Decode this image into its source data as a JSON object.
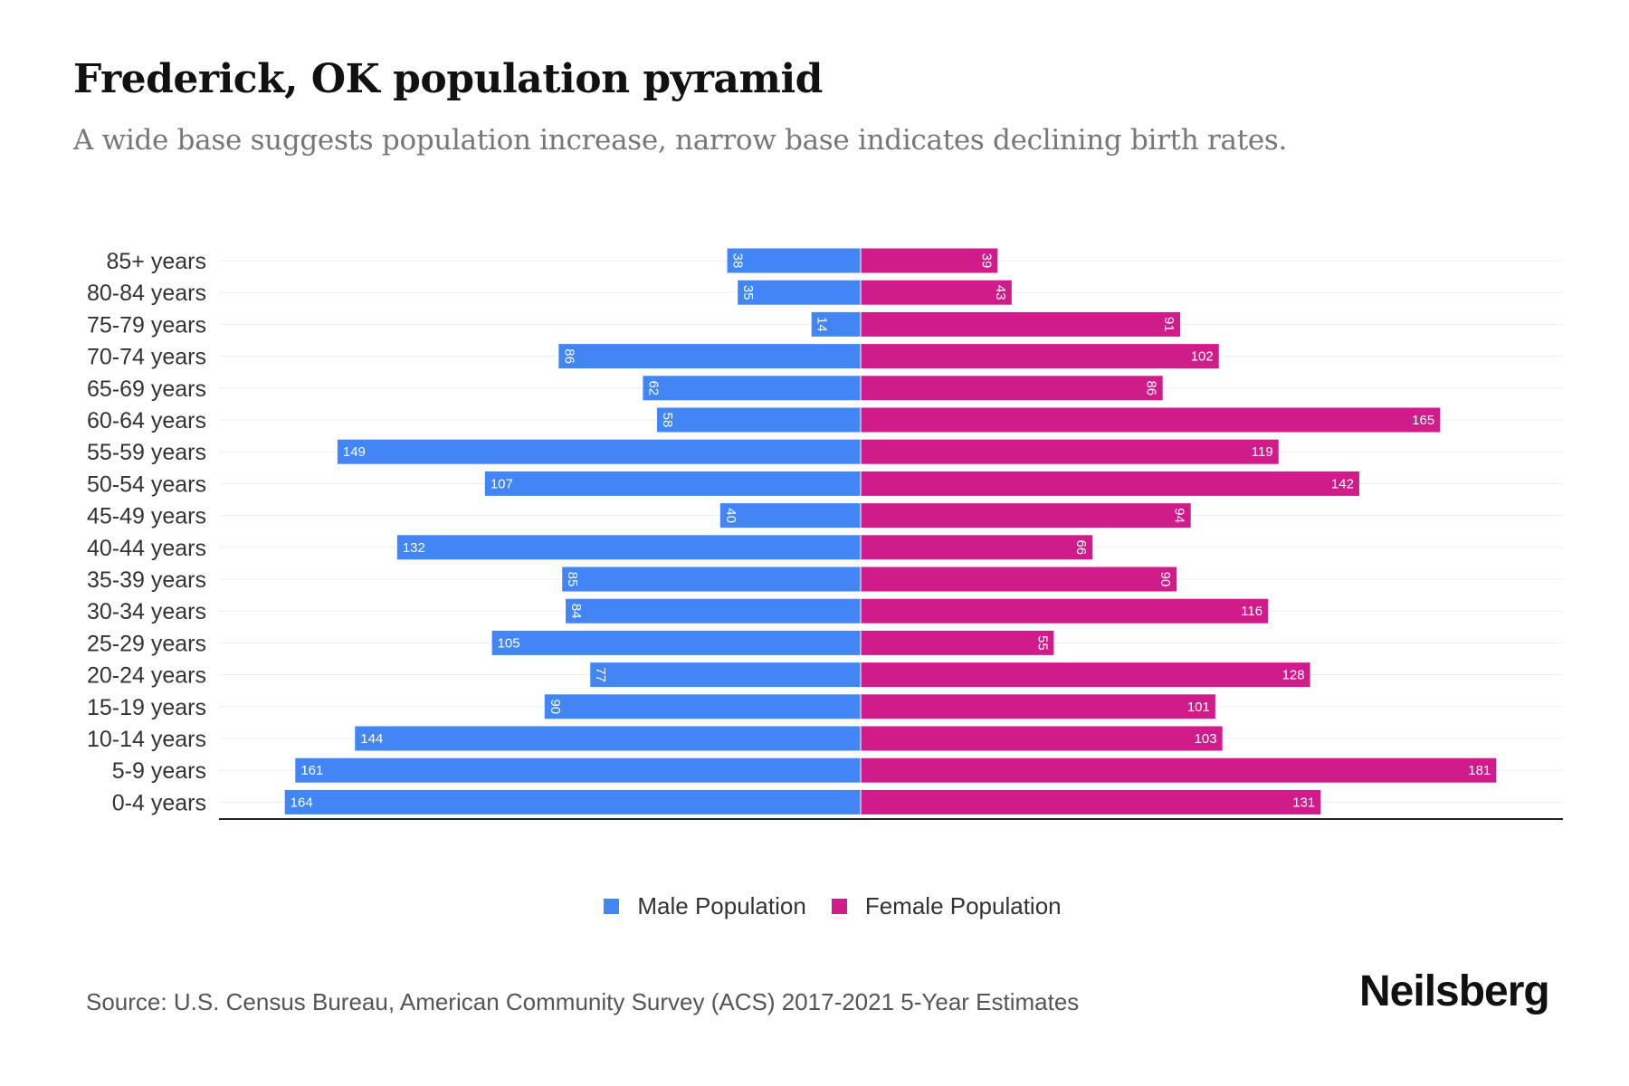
{
  "chart_data": {
    "type": "bar",
    "orientation": "horizontal-pyramid",
    "title": "Frederick, OK population pyramid",
    "subtitle": "A wide base suggests population increase, narrow base indicates declining birth rates.",
    "categories": [
      "85+ years",
      "80-84 years",
      "75-79 years",
      "70-74 years",
      "65-69 years",
      "60-64 years",
      "55-59 years",
      "50-54 years",
      "45-49 years",
      "40-44 years",
      "35-39 years",
      "30-34 years",
      "25-29 years",
      "20-24 years",
      "15-19 years",
      "10-14 years",
      "5-9 years",
      "0-4 years"
    ],
    "series": [
      {
        "name": "Male Population",
        "color": "#4285f4",
        "values": [
          38,
          35,
          14,
          86,
          62,
          58,
          149,
          107,
          40,
          132,
          85,
          84,
          105,
          77,
          90,
          144,
          161,
          164
        ]
      },
      {
        "name": "Female Population",
        "color": "#d01c8b",
        "values": [
          39,
          43,
          91,
          102,
          86,
          165,
          119,
          142,
          94,
          66,
          90,
          116,
          55,
          128,
          101,
          103,
          181,
          131
        ]
      }
    ],
    "legend_position": "bottom-center",
    "grid": true
  },
  "source": "Source: U.S. Census Bureau, American Community Survey (ACS) 2017-2021 5-Year Estimates",
  "logo": "Neilsberg"
}
